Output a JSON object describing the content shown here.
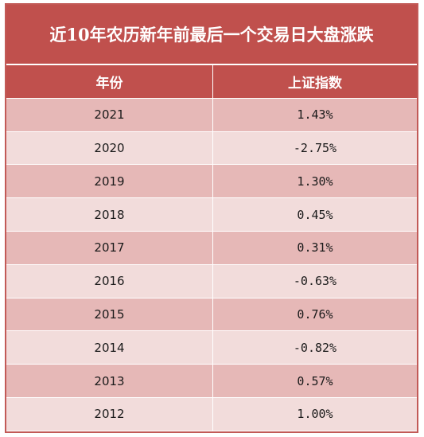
{
  "title": "近10年农历新年前最后一个交易日大盘涨跌",
  "headers": {
    "year": "年份",
    "index": "上证指数"
  },
  "rows": [
    {
      "year": "2021",
      "value": "1.43%"
    },
    {
      "year": "2020",
      "value": "-2.75%"
    },
    {
      "year": "2019",
      "value": "1.30%"
    },
    {
      "year": "2018",
      "value": "0.45%"
    },
    {
      "year": "2017",
      "value": "0.31%"
    },
    {
      "year": "2016",
      "value": "-0.63%"
    },
    {
      "year": "2015",
      "value": "0.76%"
    },
    {
      "year": "2014",
      "value": "-0.82%"
    },
    {
      "year": "2013",
      "value": "0.57%"
    },
    {
      "year": "2012",
      "value": "1.00%"
    }
  ],
  "colors": {
    "header": "#c0504d",
    "row_odd": "#e6b8b7",
    "row_even": "#f2dcdb"
  }
}
